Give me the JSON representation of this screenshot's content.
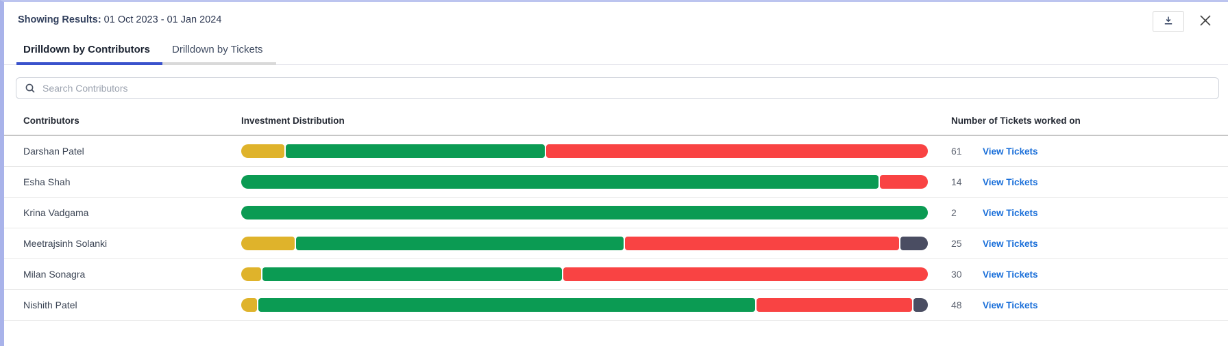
{
  "header": {
    "showing_results_label": "Showing Results:",
    "date_range": " 01 Oct 2023 - 01 Jan 2024"
  },
  "tabs": [
    {
      "label": "Drilldown by Contributors",
      "active": true
    },
    {
      "label": "Drilldown by Tickets",
      "active": false
    }
  ],
  "search": {
    "placeholder": "Search Contributors"
  },
  "table": {
    "columns": {
      "contributors": "Contributors",
      "distribution": "Investment Distribution",
      "tickets": "Number of Tickets worked on"
    },
    "view_tickets_label": "View Tickets",
    "rows": [
      {
        "contributor": "Darshan Patel",
        "tickets": "61",
        "segments": [
          {
            "color": "yellow",
            "pct": 6.3
          },
          {
            "color": "green",
            "pct": 37.9
          },
          {
            "color": "red",
            "pct": 55.8
          }
        ]
      },
      {
        "contributor": "Esha Shah",
        "tickets": "14",
        "segments": [
          {
            "color": "green",
            "pct": 93.0
          },
          {
            "color": "red",
            "pct": 7.0
          }
        ]
      },
      {
        "contributor": "Krina Vadgama",
        "tickets": "2",
        "segments": [
          {
            "color": "green",
            "pct": 100
          }
        ]
      },
      {
        "contributor": "Meetrajsinh Solanki",
        "tickets": "25",
        "segments": [
          {
            "color": "yellow",
            "pct": 7.8
          },
          {
            "color": "green",
            "pct": 48.0
          },
          {
            "color": "red",
            "pct": 40.2
          },
          {
            "color": "dark",
            "pct": 4.0
          }
        ]
      },
      {
        "contributor": "Milan Sonagra",
        "tickets": "30",
        "segments": [
          {
            "color": "yellow",
            "pct": 2.9
          },
          {
            "color": "green",
            "pct": 43.8
          },
          {
            "color": "red",
            "pct": 53.3
          }
        ]
      },
      {
        "contributor": "Nishith Patel",
        "tickets": "48",
        "segments": [
          {
            "color": "yellow",
            "pct": 2.3
          },
          {
            "color": "green",
            "pct": 72.8
          },
          {
            "color": "red",
            "pct": 22.8
          },
          {
            "color": "dark",
            "pct": 2.1
          }
        ]
      }
    ]
  },
  "colors": {
    "yellow": "#dfb32b",
    "green": "#0b9b53",
    "red": "#f94343",
    "dark": "#4a4d62",
    "tab_accent": "#3a52cc",
    "link_blue": "#1a6fd9",
    "left_accent": "#a9b3ea"
  }
}
